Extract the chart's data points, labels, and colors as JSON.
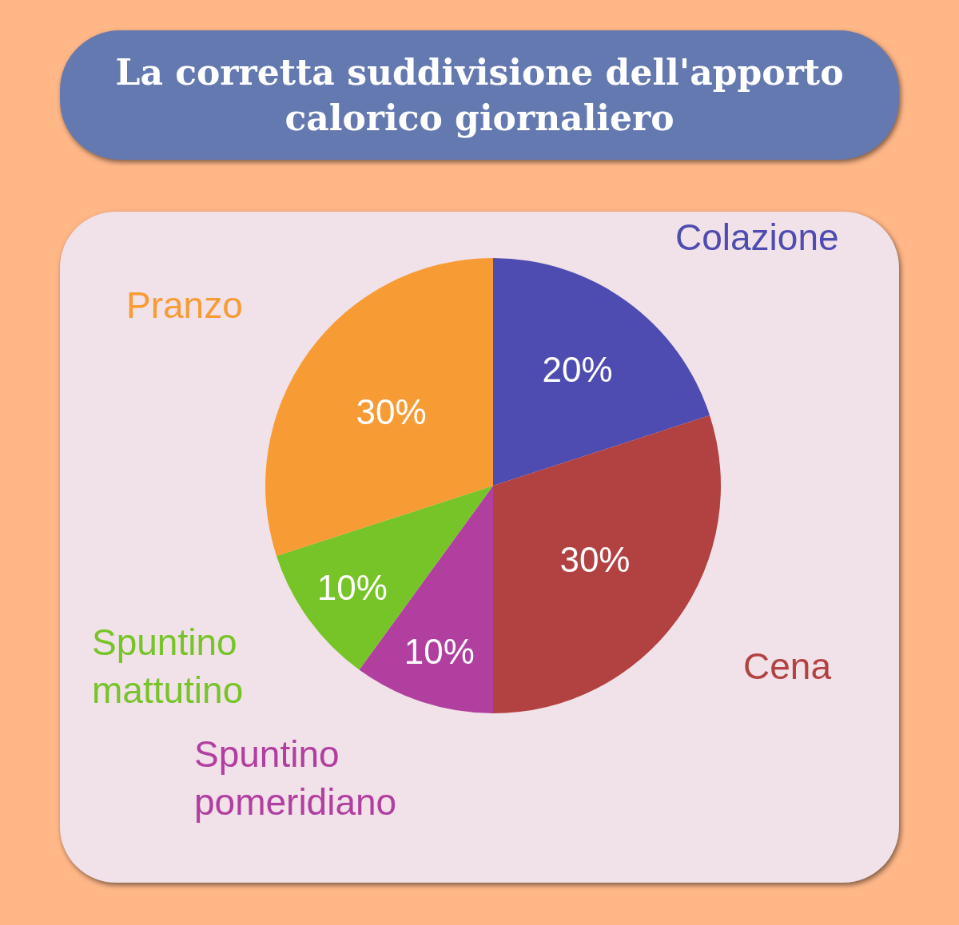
{
  "chart_data": {
    "type": "pie",
    "title": "La corretta suddivisione dell'apporto calorico giornaliero",
    "categories": [
      "Colazione",
      "Cena",
      "Spuntino pomeridiano",
      "Spuntino mattutino",
      "Pranzo"
    ],
    "values": [
      20,
      30,
      10,
      10,
      30
    ],
    "value_labels": [
      "20%",
      "30%",
      "10%",
      "10%",
      "30%"
    ],
    "colors": [
      "#4e4cb0",
      "#b24242",
      "#b03fa0",
      "#76c427",
      "#f79b35"
    ],
    "legend": false
  }
}
